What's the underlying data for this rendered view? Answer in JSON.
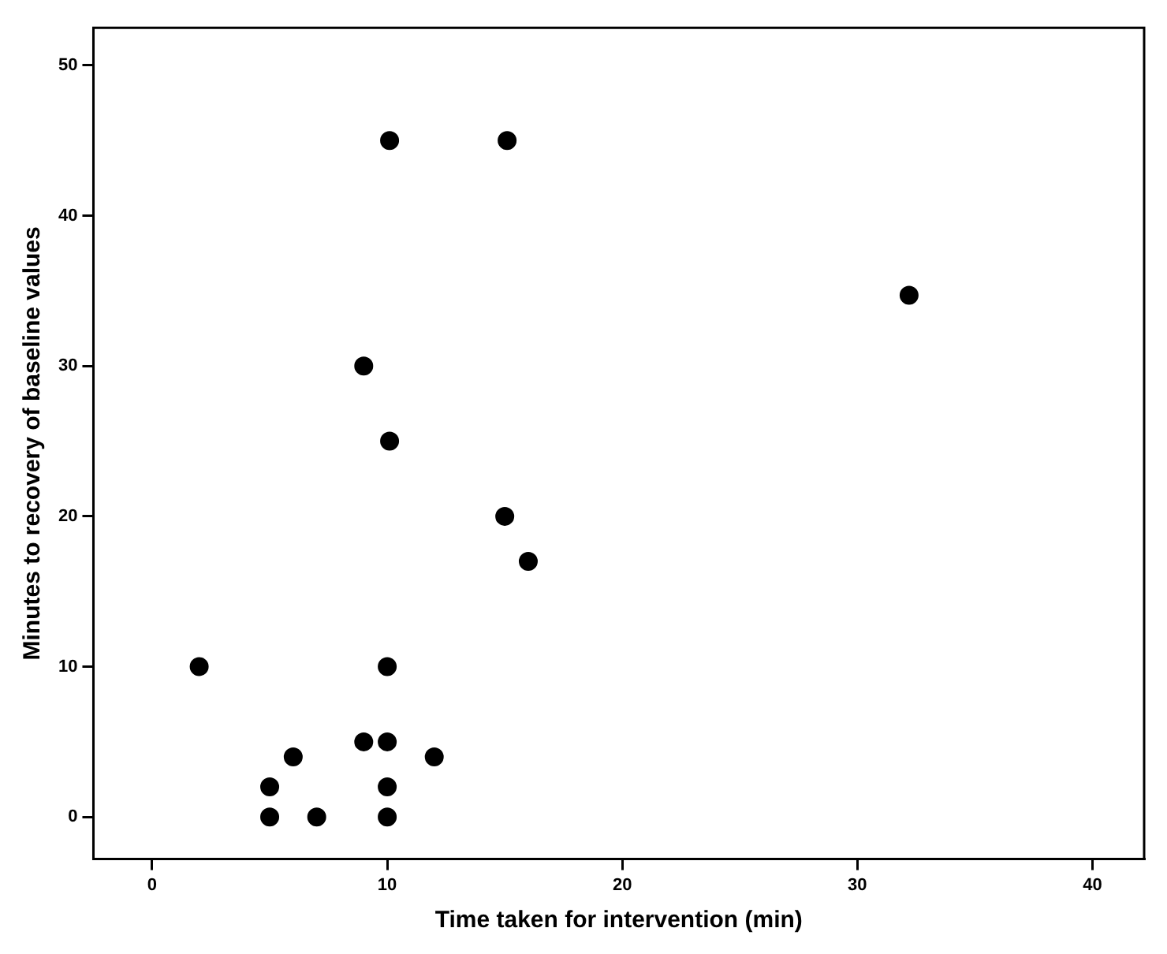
{
  "chart_data": {
    "type": "scatter",
    "xlabel": "Time taken for intervention (min)",
    "ylabel": "Minutes to recovery of baseline values",
    "x": [
      10.1,
      15.1,
      32.2,
      9,
      10.1,
      15,
      16,
      2,
      10,
      6,
      9,
      10,
      12,
      5,
      10,
      5,
      7,
      10
    ],
    "values": [
      45,
      45,
      34.7,
      30,
      25,
      20,
      17,
      10,
      10,
      4,
      5,
      5,
      4,
      2,
      2,
      0,
      0,
      0
    ],
    "color": "#000000",
    "marker": "circle",
    "xlim": [
      -2.5,
      42.2
    ],
    "ylim": [
      -2.8,
      52.5
    ],
    "xticks": [
      0,
      10,
      20,
      30,
      40
    ],
    "yticks": [
      0,
      10,
      20,
      30,
      40,
      50
    ],
    "grid": false,
    "legend": false
  }
}
